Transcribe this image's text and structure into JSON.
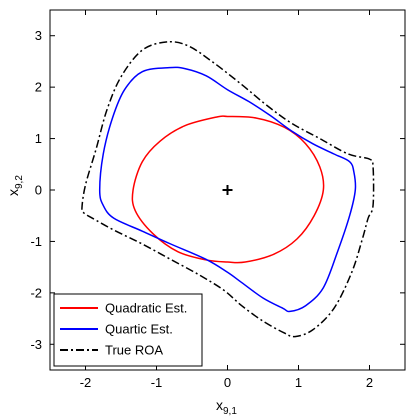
{
  "chart_data": {
    "type": "line",
    "xlabel": "x",
    "xlabel_sub": "9,1",
    "ylabel": "x",
    "ylabel_sub": "9,2",
    "xlim": [
      -2.5,
      2.5
    ],
    "ylim": [
      -3.5,
      3.5
    ],
    "xticks": [
      -2,
      -1,
      0,
      1,
      2
    ],
    "xtick_labels": [
      "-2",
      "-1",
      "0",
      "1",
      "2"
    ],
    "yticks": [
      -3,
      -2,
      -1,
      0,
      1,
      2,
      3
    ],
    "ytick_labels": [
      "-3",
      "-2",
      "-1",
      "0",
      "1",
      "2",
      "3"
    ],
    "grid": false,
    "legend_position": "bottom-left",
    "equilibrium_point": {
      "x": 0,
      "y": 0,
      "marker": "+"
    },
    "series": [
      {
        "name": "Quadratic Est.",
        "color": "#ff0000",
        "style": "solid",
        "closed": true,
        "x": [
          1.35,
          1.3,
          1.1,
          0.8,
          0.4,
          0.0,
          -0.15,
          -0.6,
          -0.95,
          -1.2,
          -1.33,
          -1.3,
          -1.05,
          -0.7,
          -0.3,
          0.0,
          0.25,
          0.65,
          0.98,
          1.22
        ],
        "y": [
          0.0,
          0.45,
          0.9,
          1.22,
          1.4,
          1.43,
          1.42,
          1.25,
          0.95,
          0.55,
          0.0,
          -0.4,
          -0.85,
          -1.2,
          -1.36,
          -1.4,
          -1.4,
          -1.25,
          -0.95,
          -0.5
        ]
      },
      {
        "name": "Quartic Est.",
        "color": "#0000ff",
        "style": "solid",
        "closed": true,
        "x": [
          -0.82,
          -1.2,
          -1.45,
          -1.62,
          -1.75,
          -1.8,
          -1.75,
          -1.6,
          -1.2,
          -0.8,
          -0.3,
          0.0,
          0.2,
          0.5,
          0.78,
          0.88,
          1.1,
          1.35,
          1.55,
          1.72,
          1.8,
          1.78,
          1.72,
          1.5,
          1.2,
          0.9,
          0.6,
          0.3,
          0.0,
          -0.3,
          -0.6
        ],
        "y": [
          2.38,
          2.3,
          1.95,
          1.4,
          0.7,
          0.0,
          -0.3,
          -0.55,
          -0.8,
          -1.05,
          -1.35,
          -1.6,
          -1.8,
          -2.1,
          -2.3,
          -2.36,
          -2.25,
          -1.9,
          -1.2,
          -0.5,
          0.0,
          0.35,
          0.55,
          0.7,
          0.9,
          1.15,
          1.45,
          1.72,
          1.95,
          2.22,
          2.36
        ]
      },
      {
        "name": "True ROA",
        "color": "#000000",
        "style": "dashdot",
        "closed": true,
        "x": [
          -0.85,
          -1.2,
          -1.5,
          -1.7,
          -1.85,
          -2.0,
          -2.05,
          -2.02,
          -1.9,
          -1.6,
          -1.2,
          -0.8,
          -0.4,
          -0.05,
          0.2,
          0.5,
          0.8,
          0.95,
          1.2,
          1.5,
          1.75,
          1.9,
          1.98,
          2.05,
          2.05,
          2.0,
          1.7,
          1.3,
          0.9,
          0.55,
          0.2,
          -0.2,
          -0.55
        ],
        "y": [
          2.88,
          2.72,
          2.2,
          1.55,
          0.8,
          0.1,
          -0.35,
          -0.45,
          -0.55,
          -0.78,
          -1.05,
          -1.35,
          -1.65,
          -1.95,
          -2.25,
          -2.55,
          -2.78,
          -2.85,
          -2.72,
          -2.3,
          -1.6,
          -0.95,
          -0.55,
          -0.3,
          0.45,
          0.6,
          0.7,
          1.0,
          1.3,
          1.65,
          2.05,
          2.48,
          2.8
        ]
      }
    ]
  }
}
